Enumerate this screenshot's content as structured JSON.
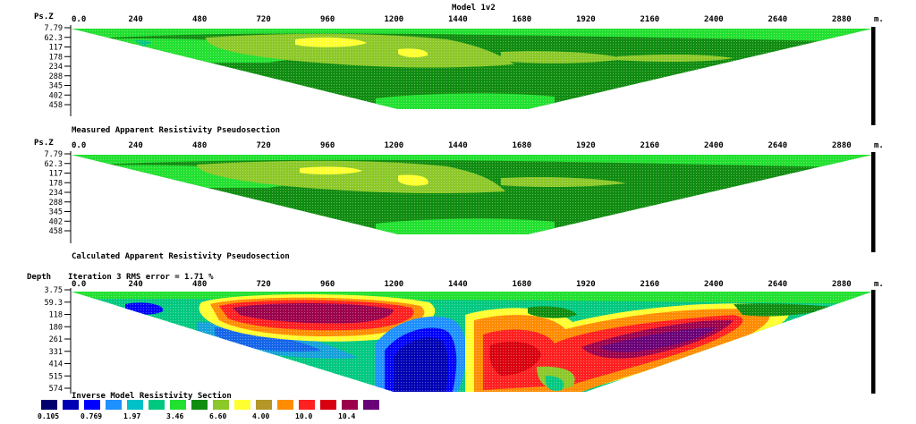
{
  "title": "Model 1v2",
  "x_unit": "m.",
  "x_ticks": [
    "0.0",
    "240",
    "480",
    "720",
    "960",
    "1200",
    "1440",
    "1680",
    "1920",
    "2160",
    "2400",
    "2640",
    "2880"
  ],
  "colors": {
    "c1": "#00006e",
    "c2": "#0000b4",
    "c3": "#0000ff",
    "c4": "#1e90ff",
    "c5": "#00c0c8",
    "c6": "#00c880",
    "c7": "#22e030",
    "c8": "#108c10",
    "c9": "#8cc828",
    "c10": "#ffff30",
    "c11": "#b49628",
    "c12": "#ff8c00",
    "c13": "#ff2020",
    "c14": "#d80010",
    "c15": "#9c004c",
    "c16": "#6a0078"
  },
  "panels": [
    {
      "title": "Measured Apparent Resistivity Pseudosection",
      "yaxis_title": "Ps.Z",
      "y_ticks": [
        "7.79",
        "62.3",
        "117",
        "178",
        "234",
        "288",
        "345",
        "402",
        "458"
      ]
    },
    {
      "title": "Calculated Apparent Resistivity Pseudosection",
      "yaxis_title": "Ps.Z",
      "y_ticks": [
        "7.79",
        "62.3",
        "117",
        "178",
        "234",
        "288",
        "345",
        "402",
        "458"
      ]
    },
    {
      "title": "Inverse Model Resistivity Section",
      "yaxis_title": "Depth",
      "subtitle": "Iteration 3 RMS error = 1.71 %",
      "y_ticks": [
        "3.75",
        "59.3",
        "118",
        "180",
        "261",
        "331",
        "414",
        "515",
        "574"
      ]
    }
  ],
  "legend": {
    "labels": [
      "0.105",
      "",
      "0.769",
      "",
      "1.97",
      "",
      "3.46",
      "",
      "6.60",
      "",
      "4.00",
      "",
      "10.0",
      "",
      "10.4",
      ""
    ]
  },
  "chart_data": {
    "type": "heatmap",
    "title": "Model 1v2",
    "x_unit": "m.",
    "x_range": [
      0,
      2960
    ],
    "sections": [
      {
        "name": "Measured Apparent Resistivity Pseudosection",
        "yaxis": "Ps.Z",
        "y_range": [
          7.79,
          458
        ]
      },
      {
        "name": "Calculated Apparent Resistivity Pseudosection",
        "yaxis": "Ps.Z",
        "y_range": [
          7.79,
          458
        ]
      },
      {
        "name": "Inverse Model Resistivity Section",
        "yaxis": "Depth",
        "y_range": [
          3.75,
          574
        ],
        "rms_error_percent": 1.71,
        "iteration": 3
      }
    ],
    "legend_values": [
      "0.105",
      "0.769",
      "1.97",
      "3.46",
      "6.60",
      "4.00",
      "10.0",
      "10.4"
    ]
  }
}
